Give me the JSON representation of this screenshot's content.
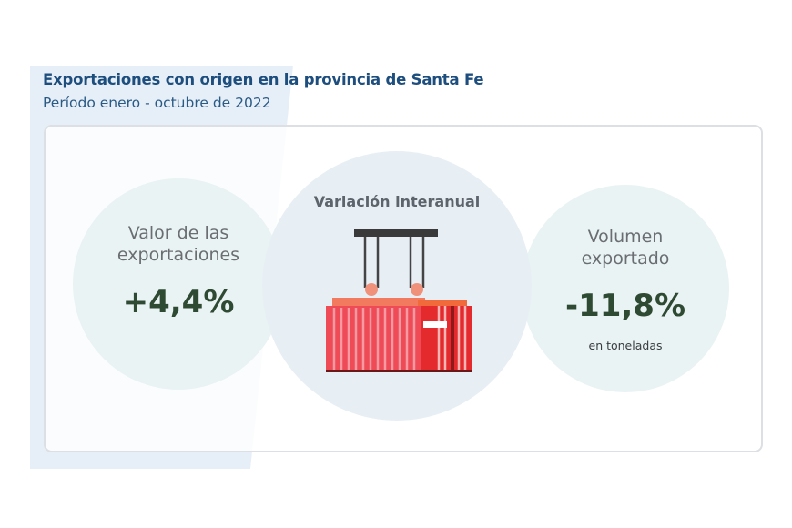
{
  "header": {
    "title": "Exportaciones con origen en la provincia de Santa Fe",
    "subtitle": "Período enero - octubre de 2022"
  },
  "left": {
    "label_line1": "Valor de las",
    "label_line2": "exportaciones",
    "value": "+4,4%"
  },
  "center": {
    "title": "Variación interanual",
    "icon": "shipping-container-icon"
  },
  "right": {
    "label_line1": "Volumen",
    "label_line2": "exportado",
    "value": "-11,8%",
    "unit": "en toneladas"
  },
  "colors": {
    "title": "#1d4e7e",
    "value": "#2f4a32",
    "container": "#ee4b57",
    "background_shape": "#e6eff7"
  }
}
